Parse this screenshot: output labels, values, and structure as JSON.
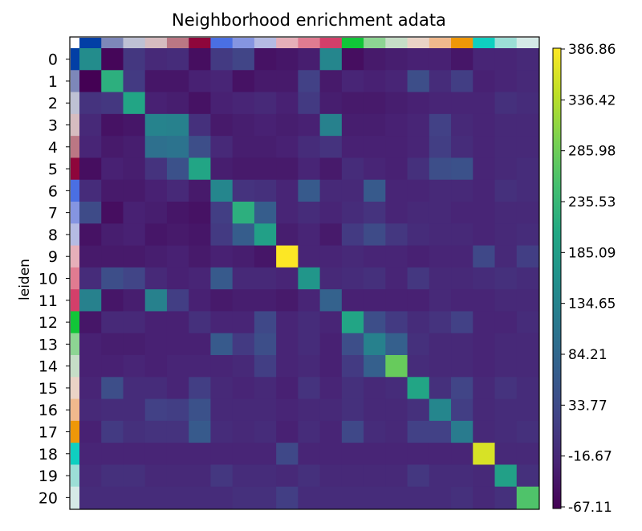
{
  "chart_data": {
    "type": "heatmap",
    "title": "Neighborhood enrichment adata",
    "ylabel": "leiden",
    "xlabel": "",
    "categories": [
      "0",
      "1",
      "2",
      "3",
      "4",
      "5",
      "6",
      "7",
      "8",
      "9",
      "10",
      "11",
      "12",
      "13",
      "14",
      "15",
      "16",
      "17",
      "18",
      "19",
      "20"
    ],
    "category_colors": [
      "#023fa5",
      "#7d87b9",
      "#bec1d4",
      "#d6bcc0",
      "#bb7784",
      "#8e063b",
      "#4a6fe3",
      "#8595e1",
      "#b5bbe3",
      "#e6afb9",
      "#e07b91",
      "#d33f6a",
      "#11c638",
      "#8dd593",
      "#c6dec7",
      "#ead3c6",
      "#f0b98d",
      "#ef9708",
      "#0fcfc0",
      "#9cded6",
      "#d5eae7"
    ],
    "colorbar": {
      "colormap": "viridis",
      "vmin": -67.11,
      "vmax": 386.86,
      "ticks": [
        "386.86",
        "336.42",
        "285.98",
        "235.53",
        "185.09",
        "134.65",
        "84.21",
        "33.77",
        "-16.67",
        "-67.11"
      ]
    },
    "values": [
      [
        150,
        -60,
        5,
        -15,
        -10,
        -50,
        10,
        25,
        -45,
        -40,
        -30,
        140,
        -50,
        -35,
        -30,
        -25,
        -25,
        -40,
        -20,
        -20,
        -15
      ],
      [
        -67,
        220,
        10,
        -40,
        -40,
        -25,
        -20,
        -45,
        -35,
        -35,
        20,
        -35,
        -20,
        -25,
        -20,
        40,
        -10,
        15,
        -25,
        -20,
        -15
      ],
      [
        0,
        5,
        200,
        -25,
        -30,
        -45,
        -25,
        -20,
        -15,
        -25,
        10,
        -30,
        -35,
        -35,
        -30,
        -25,
        -20,
        -20,
        -20,
        -5,
        -10
      ],
      [
        -15,
        -45,
        -40,
        135,
        130,
        -5,
        -35,
        -30,
        -25,
        -30,
        -25,
        130,
        -30,
        -30,
        -25,
        -20,
        20,
        -15,
        -20,
        -15,
        -15
      ],
      [
        -20,
        -35,
        -30,
        100,
        105,
        40,
        -15,
        -30,
        -30,
        -25,
        -10,
        0,
        -25,
        -25,
        -25,
        -20,
        15,
        -10,
        -20,
        -15,
        -15
      ],
      [
        -50,
        -25,
        -30,
        0,
        45,
        200,
        -30,
        -35,
        -35,
        -35,
        -20,
        -35,
        -10,
        -20,
        -25,
        -5,
        40,
        45,
        -20,
        -15,
        -10
      ],
      [
        -10,
        -35,
        -35,
        -25,
        -15,
        -35,
        140,
        0,
        -5,
        -20,
        60,
        -15,
        -15,
        60,
        -20,
        -20,
        -15,
        -15,
        -20,
        -5,
        -10
      ],
      [
        35,
        -50,
        -25,
        -30,
        -40,
        -45,
        15,
        220,
        65,
        -20,
        -10,
        -20,
        -10,
        0,
        -20,
        -15,
        -15,
        -20,
        -20,
        -15,
        -15
      ],
      [
        -45,
        -30,
        -25,
        -40,
        -35,
        -40,
        10,
        65,
        190,
        -30,
        -20,
        -35,
        10,
        35,
        5,
        -10,
        -15,
        -15,
        -20,
        -15,
        -10
      ],
      [
        -35,
        -35,
        -35,
        -30,
        -25,
        -35,
        -25,
        -30,
        -40,
        386,
        -20,
        -20,
        -15,
        -20,
        -20,
        -25,
        -20,
        -20,
        30,
        -15,
        15
      ],
      [
        -10,
        40,
        25,
        -15,
        -25,
        -20,
        60,
        -15,
        -15,
        -20,
        170,
        -15,
        -10,
        -5,
        -20,
        5,
        -15,
        -15,
        -10,
        -5,
        -10
      ],
      [
        130,
        -40,
        -30,
        130,
        15,
        -25,
        -35,
        -30,
        -30,
        -35,
        -20,
        75,
        -25,
        -25,
        -25,
        -25,
        -15,
        -20,
        -20,
        -15,
        -15
      ],
      [
        -40,
        -15,
        -15,
        -25,
        -25,
        -5,
        -20,
        -20,
        30,
        -20,
        -10,
        -20,
        200,
        40,
        10,
        -10,
        0,
        20,
        -20,
        -20,
        -10
      ],
      [
        -25,
        -30,
        -30,
        -25,
        -25,
        -25,
        60,
        10,
        40,
        -20,
        -10,
        -25,
        40,
        130,
        70,
        -5,
        -15,
        -15,
        -20,
        -15,
        -15
      ],
      [
        -25,
        -25,
        -20,
        -25,
        -20,
        -20,
        -20,
        -15,
        15,
        -20,
        -15,
        -25,
        10,
        70,
        280,
        -10,
        -15,
        -15,
        -20,
        -15,
        -15
      ],
      [
        -20,
        40,
        -10,
        -10,
        -20,
        15,
        -15,
        -20,
        -15,
        -25,
        0,
        -20,
        -5,
        -15,
        -10,
        200,
        -5,
        25,
        -15,
        0,
        -10
      ],
      [
        -15,
        -10,
        -10,
        20,
        15,
        45,
        -15,
        -15,
        -15,
        -20,
        -15,
        -15,
        -5,
        -15,
        -15,
        -5,
        140,
        15,
        -15,
        -10,
        -10
      ],
      [
        -25,
        10,
        -5,
        0,
        0,
        60,
        -10,
        -15,
        -10,
        -25,
        -10,
        -20,
        30,
        -10,
        -15,
        20,
        20,
        120,
        -15,
        -10,
        -5
      ],
      [
        -20,
        -20,
        -20,
        -20,
        -20,
        -20,
        -20,
        -20,
        -20,
        30,
        -20,
        -20,
        -20,
        -20,
        -20,
        -20,
        -20,
        -20,
        360,
        -15,
        -15
      ],
      [
        -15,
        -5,
        -5,
        -15,
        -15,
        -15,
        5,
        -10,
        -10,
        -15,
        -5,
        -15,
        -15,
        -15,
        -15,
        5,
        -10,
        -10,
        -15,
        190,
        -5
      ],
      [
        -10,
        -10,
        -10,
        -10,
        -10,
        -10,
        -10,
        -5,
        -5,
        15,
        -10,
        -10,
        -10,
        -10,
        -10,
        -10,
        -10,
        -5,
        -15,
        -5,
        260
      ]
    ]
  }
}
